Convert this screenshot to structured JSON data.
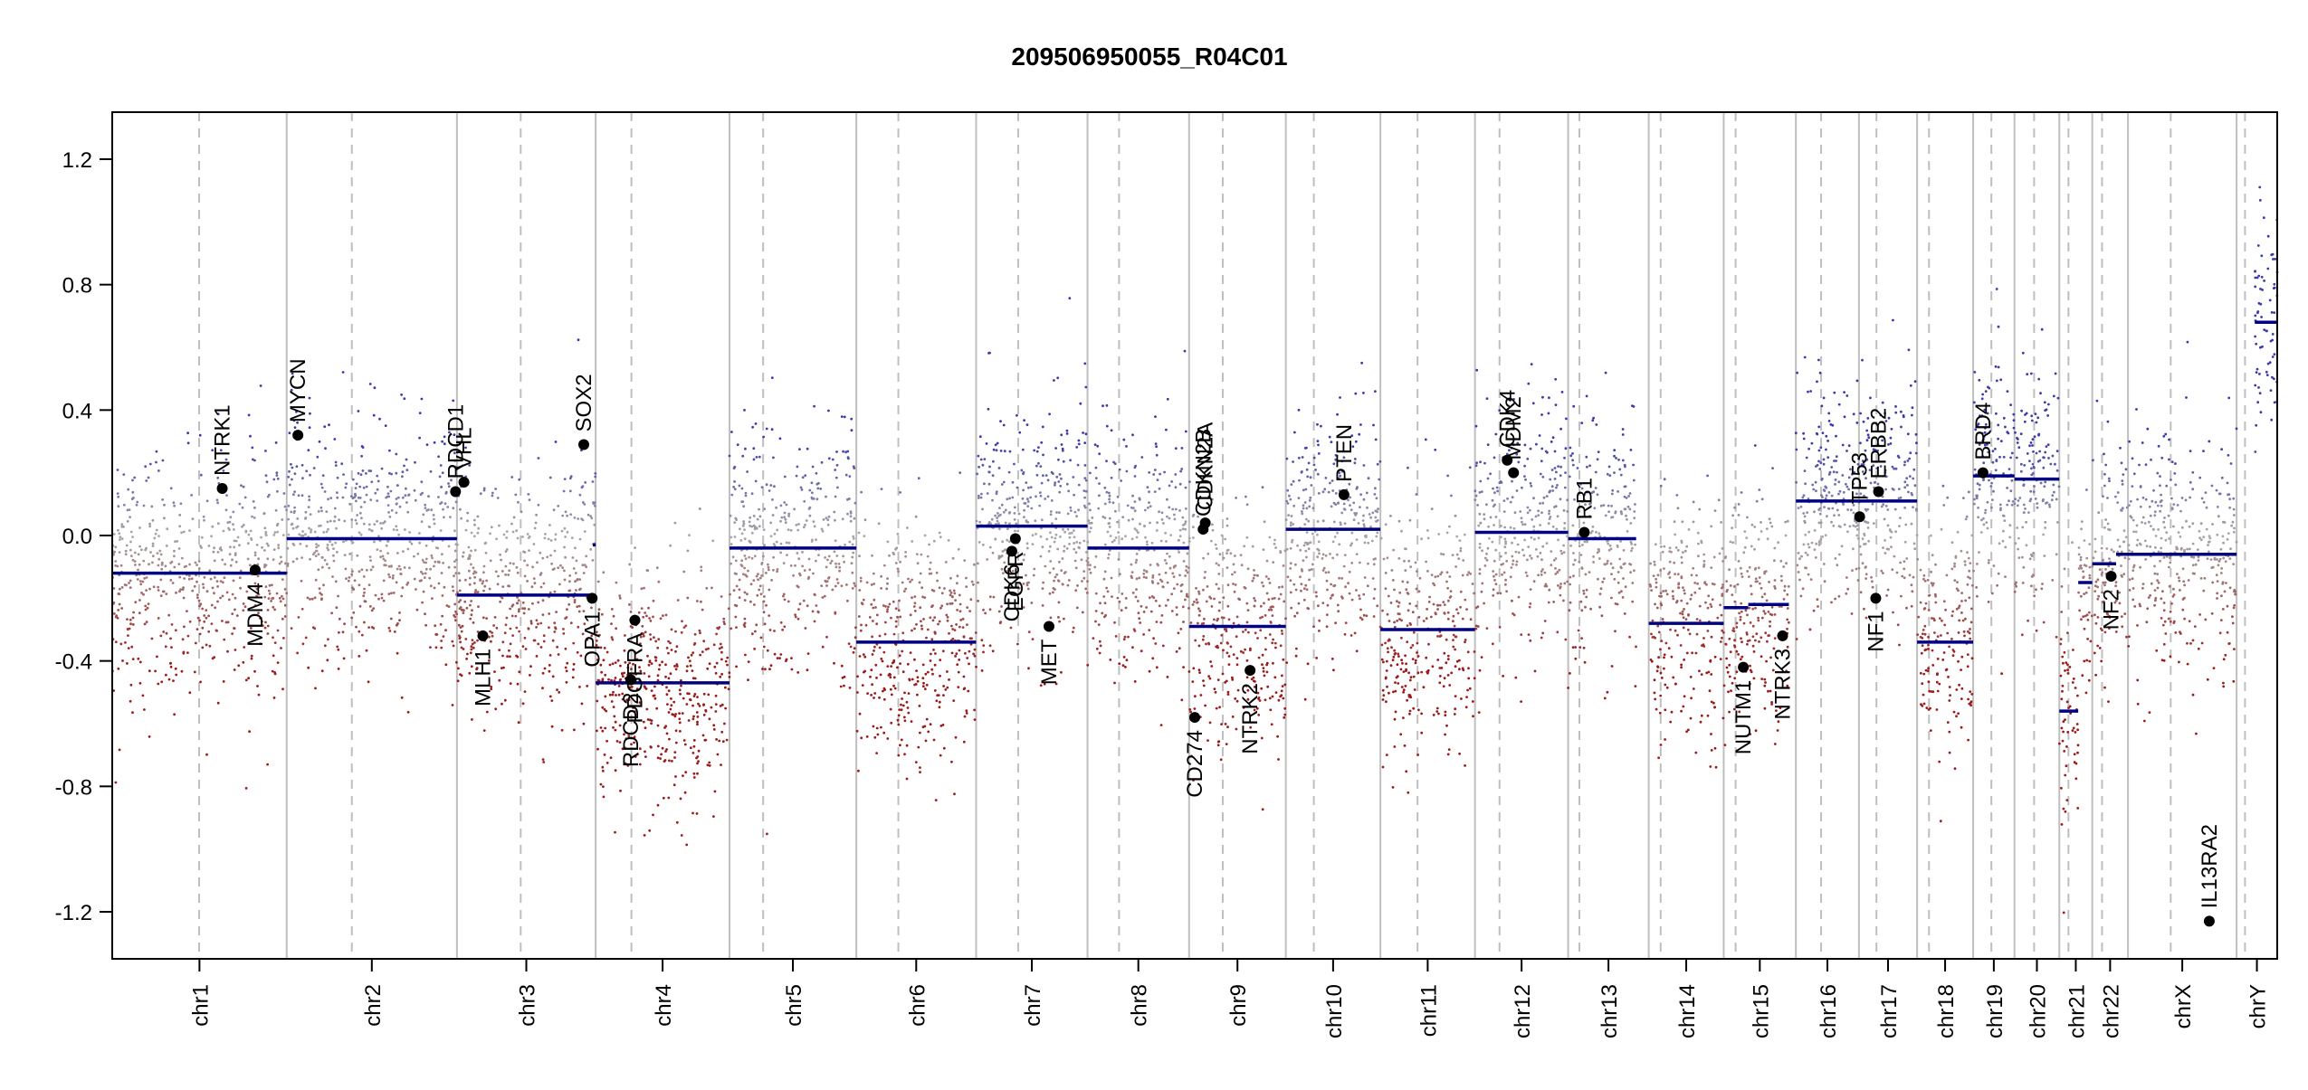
{
  "chart_data": {
    "type": "scatter",
    "title": "209506950055_R04C01",
    "xlabel": "",
    "ylabel": "",
    "ylim": [
      -1.35,
      1.35
    ],
    "y_ticks": [
      -1.2,
      -0.8,
      -0.4,
      0.0,
      0.4,
      0.8,
      1.2
    ],
    "y_tick_labels": [
      "-1.2",
      "-0.8",
      "-0.4",
      "0.0",
      "0.4",
      "0.8",
      "1.2"
    ],
    "grid": false,
    "colors": {
      "gain": "#3a3aa8",
      "loss": "#9b1b1b",
      "neutral": "#a8a8a8",
      "segment": "#000080",
      "gene_point": "#000000",
      "chrom_boundary": "#bfbfbf",
      "centromere": "#bfbfbf"
    },
    "chromosomes": [
      {
        "name": "chr1",
        "start": 0,
        "end": 249,
        "centro": 124
      },
      {
        "name": "chr2",
        "start": 249,
        "end": 492,
        "centro": 342
      },
      {
        "name": "chr3",
        "start": 492,
        "end": 690,
        "centro": 583
      },
      {
        "name": "chr4",
        "start": 690,
        "end": 881,
        "centro": 741
      },
      {
        "name": "chr5",
        "start": 881,
        "end": 1062,
        "centro": 929
      },
      {
        "name": "chr6",
        "start": 1062,
        "end": 1233,
        "centro": 1122
      },
      {
        "name": "chr7",
        "start": 1233,
        "end": 1392,
        "centro": 1293
      },
      {
        "name": "chr8",
        "start": 1392,
        "end": 1537,
        "centro": 1437
      },
      {
        "name": "chr9",
        "start": 1537,
        "end": 1675,
        "centro": 1585
      },
      {
        "name": "chr10",
        "start": 1675,
        "end": 1810,
        "centro": 1715
      },
      {
        "name": "chr11",
        "start": 1810,
        "end": 1945,
        "centro": 1863
      },
      {
        "name": "chr12",
        "start": 1945,
        "end": 2078,
        "centro": 1980
      },
      {
        "name": "chr13",
        "start": 2078,
        "end": 2193,
        "centro": 2094
      },
      {
        "name": "chr14",
        "start": 2193,
        "end": 2300,
        "centro": 2210
      },
      {
        "name": "chr15",
        "start": 2300,
        "end": 2403,
        "centro": 2317
      },
      {
        "name": "chr16",
        "start": 2403,
        "end": 2493,
        "centro": 2439
      },
      {
        "name": "chr17",
        "start": 2493,
        "end": 2576,
        "centro": 2518
      },
      {
        "name": "chr18",
        "start": 2576,
        "end": 2656,
        "centro": 2593
      },
      {
        "name": "chr19",
        "start": 2656,
        "end": 2715,
        "centro": 2682
      },
      {
        "name": "chr20",
        "start": 2715,
        "end": 2779,
        "centro": 2743
      },
      {
        "name": "chr21",
        "start": 2779,
        "end": 2826,
        "centro": 2792
      },
      {
        "name": "chr22",
        "start": 2826,
        "end": 2877,
        "centro": 2840
      },
      {
        "name": "chrX",
        "start": 2877,
        "end": 3032,
        "centro": 2938
      },
      {
        "name": "chrY",
        "start": 3032,
        "end": 3090,
        "centro": 3044
      }
    ],
    "segments": [
      {
        "x0": 0,
        "x1": 249,
        "y": -0.12
      },
      {
        "x0": 249,
        "x1": 492,
        "y": -0.01
      },
      {
        "x0": 492,
        "x1": 686,
        "y": -0.19
      },
      {
        "x0": 686,
        "x1": 690,
        "y": -0.03
      },
      {
        "x0": 690,
        "x1": 881,
        "y": -0.47
      },
      {
        "x0": 881,
        "x1": 1062,
        "y": -0.04
      },
      {
        "x0": 1062,
        "x1": 1233,
        "y": -0.34
      },
      {
        "x0": 1233,
        "x1": 1392,
        "y": 0.03
      },
      {
        "x0": 1392,
        "x1": 1537,
        "y": -0.04
      },
      {
        "x0": 1537,
        "x1": 1675,
        "y": -0.29
      },
      {
        "x0": 1675,
        "x1": 1810,
        "y": 0.02
      },
      {
        "x0": 1810,
        "x1": 1945,
        "y": -0.3
      },
      {
        "x0": 1945,
        "x1": 2078,
        "y": 0.01
      },
      {
        "x0": 2078,
        "x1": 2175,
        "y": -0.01
      },
      {
        "x0": 2193,
        "x1": 2300,
        "y": -0.28
      },
      {
        "x0": 2300,
        "x1": 2335,
        "y": -0.23
      },
      {
        "x0": 2335,
        "x1": 2393,
        "y": -0.22
      },
      {
        "x0": 2403,
        "x1": 2493,
        "y": 0.11
      },
      {
        "x0": 2493,
        "x1": 2576,
        "y": 0.11
      },
      {
        "x0": 2576,
        "x1": 2656,
        "y": -0.34
      },
      {
        "x0": 2656,
        "x1": 2715,
        "y": 0.19
      },
      {
        "x0": 2715,
        "x1": 2779,
        "y": 0.18
      },
      {
        "x0": 2779,
        "x1": 2806,
        "y": -0.56
      },
      {
        "x0": 2806,
        "x1": 2826,
        "y": -0.15
      },
      {
        "x0": 2826,
        "x1": 2860,
        "y": -0.09
      },
      {
        "x0": 2860,
        "x1": 3032,
        "y": -0.06
      },
      {
        "x0": 3058,
        "x1": 3090,
        "y": 0.68
      }
    ],
    "genes": [
      {
        "name": "NTRK1",
        "x": 157,
        "y": 0.15,
        "label_side": "above"
      },
      {
        "name": "MDM4",
        "x": 204,
        "y": -0.11,
        "label_side": "below"
      },
      {
        "name": "MYCN",
        "x": 265,
        "y": 0.32,
        "label_side": "above"
      },
      {
        "name": "RDCD1",
        "x": 490,
        "y": 0.14,
        "label_side": "above"
      },
      {
        "name": "VHL",
        "x": 502,
        "y": 0.17,
        "label_side": "above"
      },
      {
        "name": "MLH1",
        "x": 529,
        "y": -0.32,
        "label_side": "below"
      },
      {
        "name": "SOX2",
        "x": 673,
        "y": 0.29,
        "label_side": "above"
      },
      {
        "name": "OPA1",
        "x": 685,
        "y": -0.2,
        "label_side": "below"
      },
      {
        "name": "PDGFRA",
        "x": 746,
        "y": -0.27,
        "label_side": "below"
      },
      {
        "name": "RDCD2",
        "x": 740,
        "y": -0.46,
        "label_side": "below"
      },
      {
        "name": "EGFR",
        "x": 1289,
        "y": -0.01,
        "label_side": "below"
      },
      {
        "name": "CDK6",
        "x": 1284,
        "y": -0.05,
        "label_side": "below"
      },
      {
        "name": "MET",
        "x": 1337,
        "y": -0.29,
        "label_side": "below"
      },
      {
        "name": "CD274",
        "x": 1545,
        "y": -0.58,
        "label_side": "below"
      },
      {
        "name": "CDKN2A",
        "x": 1560,
        "y": 0.04,
        "label_side": "above"
      },
      {
        "name": "CDKN2B",
        "x": 1557,
        "y": 0.02,
        "label_side": "above"
      },
      {
        "name": "NTRK2",
        "x": 1624,
        "y": -0.43,
        "label_side": "below"
      },
      {
        "name": "PTEN",
        "x": 1758,
        "y": 0.13,
        "label_side": "above"
      },
      {
        "name": "CDK4",
        "x": 1991,
        "y": 0.24,
        "label_side": "above"
      },
      {
        "name": "MDM2",
        "x": 2000,
        "y": 0.2,
        "label_side": "above"
      },
      {
        "name": "RB1",
        "x": 2101,
        "y": 0.01,
        "label_side": "above"
      },
      {
        "name": "NUTM1",
        "x": 2328,
        "y": -0.42,
        "label_side": "below"
      },
      {
        "name": "NTRK3",
        "x": 2384,
        "y": -0.32,
        "label_side": "below"
      },
      {
        "name": "TP53",
        "x": 2494,
        "y": 0.06,
        "label_side": "above"
      },
      {
        "name": "NF1",
        "x": 2517,
        "y": -0.2,
        "label_side": "below"
      },
      {
        "name": "ERBB2",
        "x": 2521,
        "y": 0.14,
        "label_side": "above"
      },
      {
        "name": "BRD4",
        "x": 2670,
        "y": 0.2,
        "label_side": "above"
      },
      {
        "name": "NF2",
        "x": 2853,
        "y": -0.13,
        "label_side": "below"
      },
      {
        "name": "IL13RA2",
        "x": 2993,
        "y": -1.23,
        "label_side": "above"
      }
    ]
  }
}
